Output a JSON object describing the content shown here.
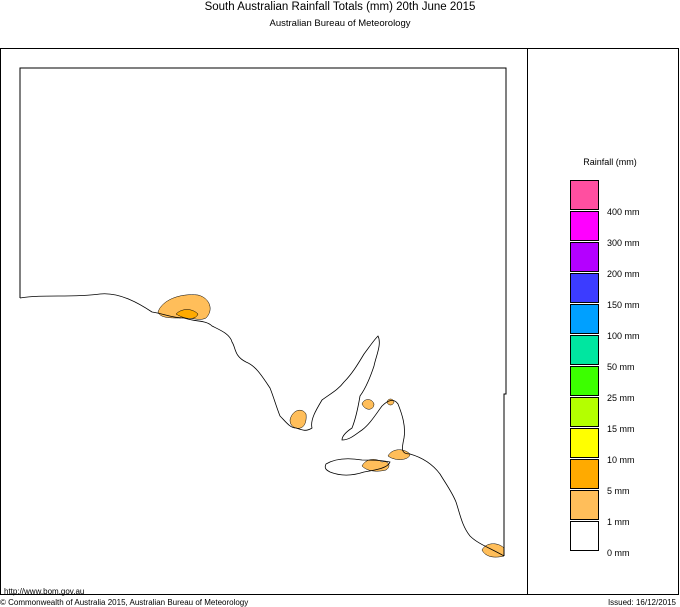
{
  "title": "South Australian Rainfall Totals (mm)   20th June 2015",
  "subtitle": "Australian Bureau of Meteorology",
  "legend": {
    "title": "Rainfall (mm)",
    "swatches": [
      {
        "color": "#ff4fa0"
      },
      {
        "color": "#ff00ff"
      },
      {
        "color": "#b400ff"
      },
      {
        "color": "#3c3cff"
      },
      {
        "color": "#00a0ff"
      },
      {
        "color": "#00e6a0"
      },
      {
        "color": "#3cff00"
      },
      {
        "color": "#b4ff00"
      },
      {
        "color": "#ffff00"
      },
      {
        "color": "#ffaa00"
      },
      {
        "color": "#ffbe5a"
      },
      {
        "color": "#ffffff"
      }
    ],
    "labels": [
      "400 mm",
      "300 mm",
      "200 mm",
      "150 mm",
      "100 mm",
      "50 mm",
      "25 mm",
      "15 mm",
      "10 mm",
      "5 mm",
      "1 mm",
      "0 mm"
    ]
  },
  "rain_colors": {
    "light": "#ffbe5a",
    "moderate": "#ffaa00"
  },
  "footer": {
    "url": "http://www.bom.gov.au",
    "copyright": "© Commonwealth of Australia 2015, Australian Bureau of Meteorology",
    "issued": "Issued: 16/12/2015"
  }
}
